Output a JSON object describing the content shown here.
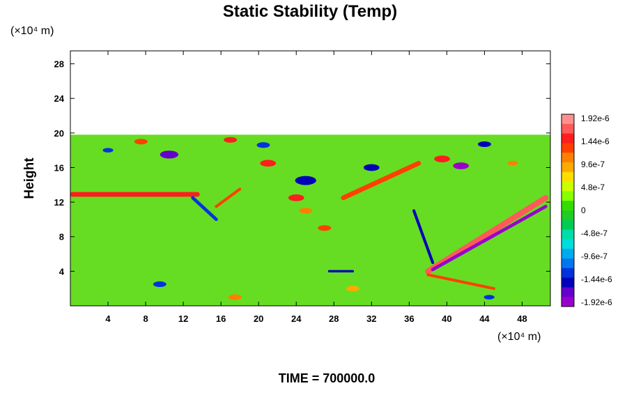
{
  "chart_data": {
    "type": "heatmap",
    "title": "Static Stability (Temp)",
    "ylabel": "Height",
    "y_unit_label": "(×10⁴ m)",
    "x_unit_label": "(×10⁴ m)",
    "footer": "TIME = 700000.0",
    "xlim": [
      0,
      51
    ],
    "ylim": [
      0,
      29.5
    ],
    "x_ticks": [
      4,
      8,
      12,
      16,
      20,
      24,
      28,
      32,
      36,
      40,
      44,
      48
    ],
    "y_ticks": [
      4,
      8,
      12,
      16,
      20,
      24,
      28
    ],
    "field_top": 19.8,
    "colorbar": {
      "range": [
        -1.92e-06,
        1.92e-06
      ],
      "tick_labels": [
        "1.92e-6",
        "1.44e-6",
        "9.6e-7",
        "4.8e-7",
        "0",
        "-4.8e-7",
        "-9.6e-7",
        "-1.44e-6",
        "-1.92e-6"
      ],
      "colors": [
        "#ff9090",
        "#ff5a5a",
        "#ff1e1e",
        "#ff4000",
        "#ff8000",
        "#ffaa00",
        "#ffdd00",
        "#ccff00",
        "#88ff00",
        "#33dd00",
        "#22cc22",
        "#00cc55",
        "#00ddaa",
        "#00dddd",
        "#00aaee",
        "#0077ee",
        "#0033dd",
        "#0000bb",
        "#6600cc",
        "#9900cc"
      ]
    },
    "features": [
      {
        "kind": "band",
        "value": 1.5e-06,
        "x1": 0.2,
        "y1": 12.9,
        "x2": 13.5,
        "y2": 12.9,
        "width": 0.5
      },
      {
        "kind": "band",
        "value": 1.3e-06,
        "x1": 29,
        "y1": 12.5,
        "x2": 37,
        "y2": 16.5,
        "width": 0.5
      },
      {
        "kind": "band",
        "value": 1.6e-06,
        "x1": 38,
        "y1": 4.0,
        "x2": 50.5,
        "y2": 12.5,
        "width": 0.6
      },
      {
        "kind": "band",
        "value": -1.92e-06,
        "x1": 38.5,
        "y1": 4.2,
        "x2": 50.5,
        "y2": 11.5,
        "width": 0.35
      },
      {
        "kind": "band",
        "value": -1.2e-06,
        "x1": 13,
        "y1": 12.5,
        "x2": 15.5,
        "y2": 10,
        "width": 0.35
      },
      {
        "kind": "band",
        "value": 1.2e-06,
        "x1": 15.5,
        "y1": 11.5,
        "x2": 18,
        "y2": 13.5,
        "width": 0.3
      },
      {
        "kind": "band",
        "value": -1.4e-06,
        "x1": 36.5,
        "y1": 11,
        "x2": 38.5,
        "y2": 5,
        "width": 0.3
      },
      {
        "kind": "band",
        "value": 1.3e-06,
        "x1": 38,
        "y1": 3.6,
        "x2": 45,
        "y2": 2.0,
        "width": 0.3
      },
      {
        "kind": "band",
        "value": -1.5e-06,
        "x1": 27.5,
        "y1": 4.0,
        "x2": 30,
        "y2": 4.0,
        "width": 0.25
      },
      {
        "kind": "blob",
        "value": -1.6e-06,
        "x": 10.5,
        "y": 17.5,
        "r": 0.7
      },
      {
        "kind": "blob",
        "value": 1.5e-06,
        "x": 21,
        "y": 16.5,
        "r": 0.6
      },
      {
        "kind": "blob",
        "value": -1.5e-06,
        "x": 25,
        "y": 14.5,
        "r": 0.8
      },
      {
        "kind": "blob",
        "value": 1.4e-06,
        "x": 24,
        "y": 12.5,
        "r": 0.6
      },
      {
        "kind": "blob",
        "value": -1.4e-06,
        "x": 32,
        "y": 16.0,
        "r": 0.6
      },
      {
        "kind": "blob",
        "value": 1.5e-06,
        "x": 39.5,
        "y": 17.0,
        "r": 0.6
      },
      {
        "kind": "blob",
        "value": -1.92e-06,
        "x": 41.5,
        "y": 16.2,
        "r": 0.6
      },
      {
        "kind": "blob",
        "value": 1.2e-06,
        "x": 27,
        "y": 9.0,
        "r": 0.5
      },
      {
        "kind": "blob",
        "value": 1e-06,
        "x": 25,
        "y": 11.0,
        "r": 0.5
      },
      {
        "kind": "blob",
        "value": -1.3e-06,
        "x": 20.5,
        "y": 18.6,
        "r": 0.5
      },
      {
        "kind": "blob",
        "value": 1.4e-06,
        "x": 17,
        "y": 19.2,
        "r": 0.5
      },
      {
        "kind": "blob",
        "value": -1.5e-06,
        "x": 44,
        "y": 18.7,
        "r": 0.5
      },
      {
        "kind": "blob",
        "value": 1.2e-06,
        "x": 7.5,
        "y": 19.0,
        "r": 0.5
      },
      {
        "kind": "blob",
        "value": -1.2e-06,
        "x": 9.5,
        "y": 2.5,
        "r": 0.5
      },
      {
        "kind": "blob",
        "value": 1e-06,
        "x": 17.5,
        "y": 1.0,
        "r": 0.5
      },
      {
        "kind": "blob",
        "value": 9e-07,
        "x": 30,
        "y": 2.0,
        "r": 0.5
      },
      {
        "kind": "blob",
        "value": -1.2e-06,
        "x": 44.5,
        "y": 1.0,
        "r": 0.4
      },
      {
        "kind": "blob",
        "value": 1e-06,
        "x": 47,
        "y": 16.5,
        "r": 0.4
      },
      {
        "kind": "blob",
        "value": -1.2e-06,
        "x": 4.0,
        "y": 18.0,
        "r": 0.4
      }
    ]
  }
}
